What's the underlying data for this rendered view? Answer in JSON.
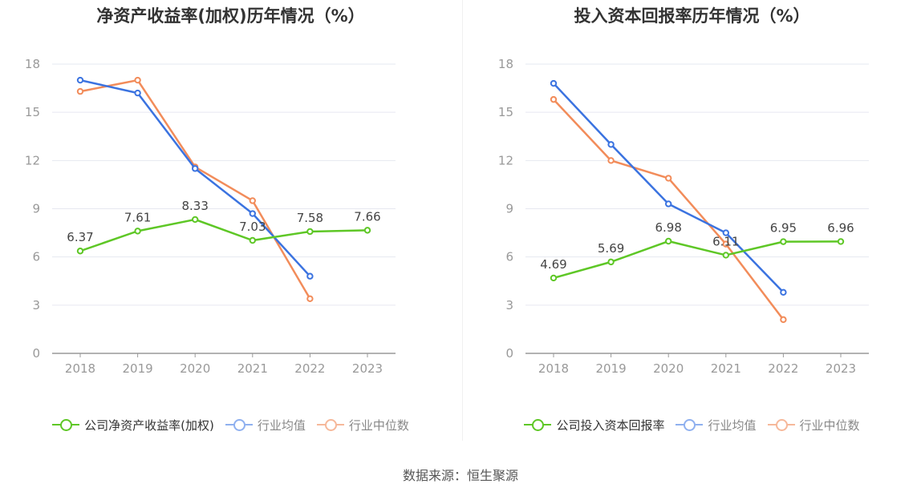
{
  "charts": [
    {
      "title": "净资产收益率(加权)历年情况（%）",
      "legend": [
        "公司净资产收益率(加权)",
        "行业均值",
        "行业中位数"
      ]
    },
    {
      "title": "投入资本回报率历年情况（%）",
      "legend": [
        "公司投入资本回报率",
        "行业均值",
        "行业中位数"
      ]
    }
  ],
  "source": "数据来源：恒生聚源",
  "colors": {
    "company": "#5ec726",
    "industry_mean": "#3b73e0",
    "industry_median": "#f28c5a"
  },
  "chart_data": [
    {
      "type": "line",
      "title": "净资产收益率(加权)历年情况（%）",
      "categories": [
        "2018",
        "2019",
        "2020",
        "2021",
        "2022",
        "2023"
      ],
      "ylim": [
        0,
        18
      ],
      "yticks": [
        0,
        3,
        6,
        9,
        12,
        15,
        18
      ],
      "grid": true,
      "legend_position": "bottom",
      "series": [
        {
          "name": "公司净资产收益率(加权)",
          "values": [
            6.37,
            7.61,
            8.33,
            7.03,
            7.58,
            7.66
          ],
          "labels": true
        },
        {
          "name": "行业均值",
          "values": [
            17.0,
            16.2,
            11.5,
            8.7,
            4.8,
            null
          ]
        },
        {
          "name": "行业中位数",
          "values": [
            16.3,
            17.0,
            11.6,
            9.5,
            3.4,
            null
          ]
        }
      ]
    },
    {
      "type": "line",
      "title": "投入资本回报率历年情况（%）",
      "categories": [
        "2018",
        "2019",
        "2020",
        "2021",
        "2022",
        "2023"
      ],
      "ylim": [
        0,
        18
      ],
      "yticks": [
        0,
        3,
        6,
        9,
        12,
        15,
        18
      ],
      "grid": true,
      "legend_position": "bottom",
      "series": [
        {
          "name": "公司投入资本回报率",
          "values": [
            4.69,
            5.69,
            6.98,
            6.11,
            6.95,
            6.96
          ],
          "labels": true
        },
        {
          "name": "行业均值",
          "values": [
            16.8,
            13.0,
            9.3,
            7.5,
            3.8,
            null
          ]
        },
        {
          "name": "行业中位数",
          "values": [
            15.8,
            12.0,
            10.9,
            6.8,
            2.1,
            null
          ]
        }
      ]
    }
  ]
}
